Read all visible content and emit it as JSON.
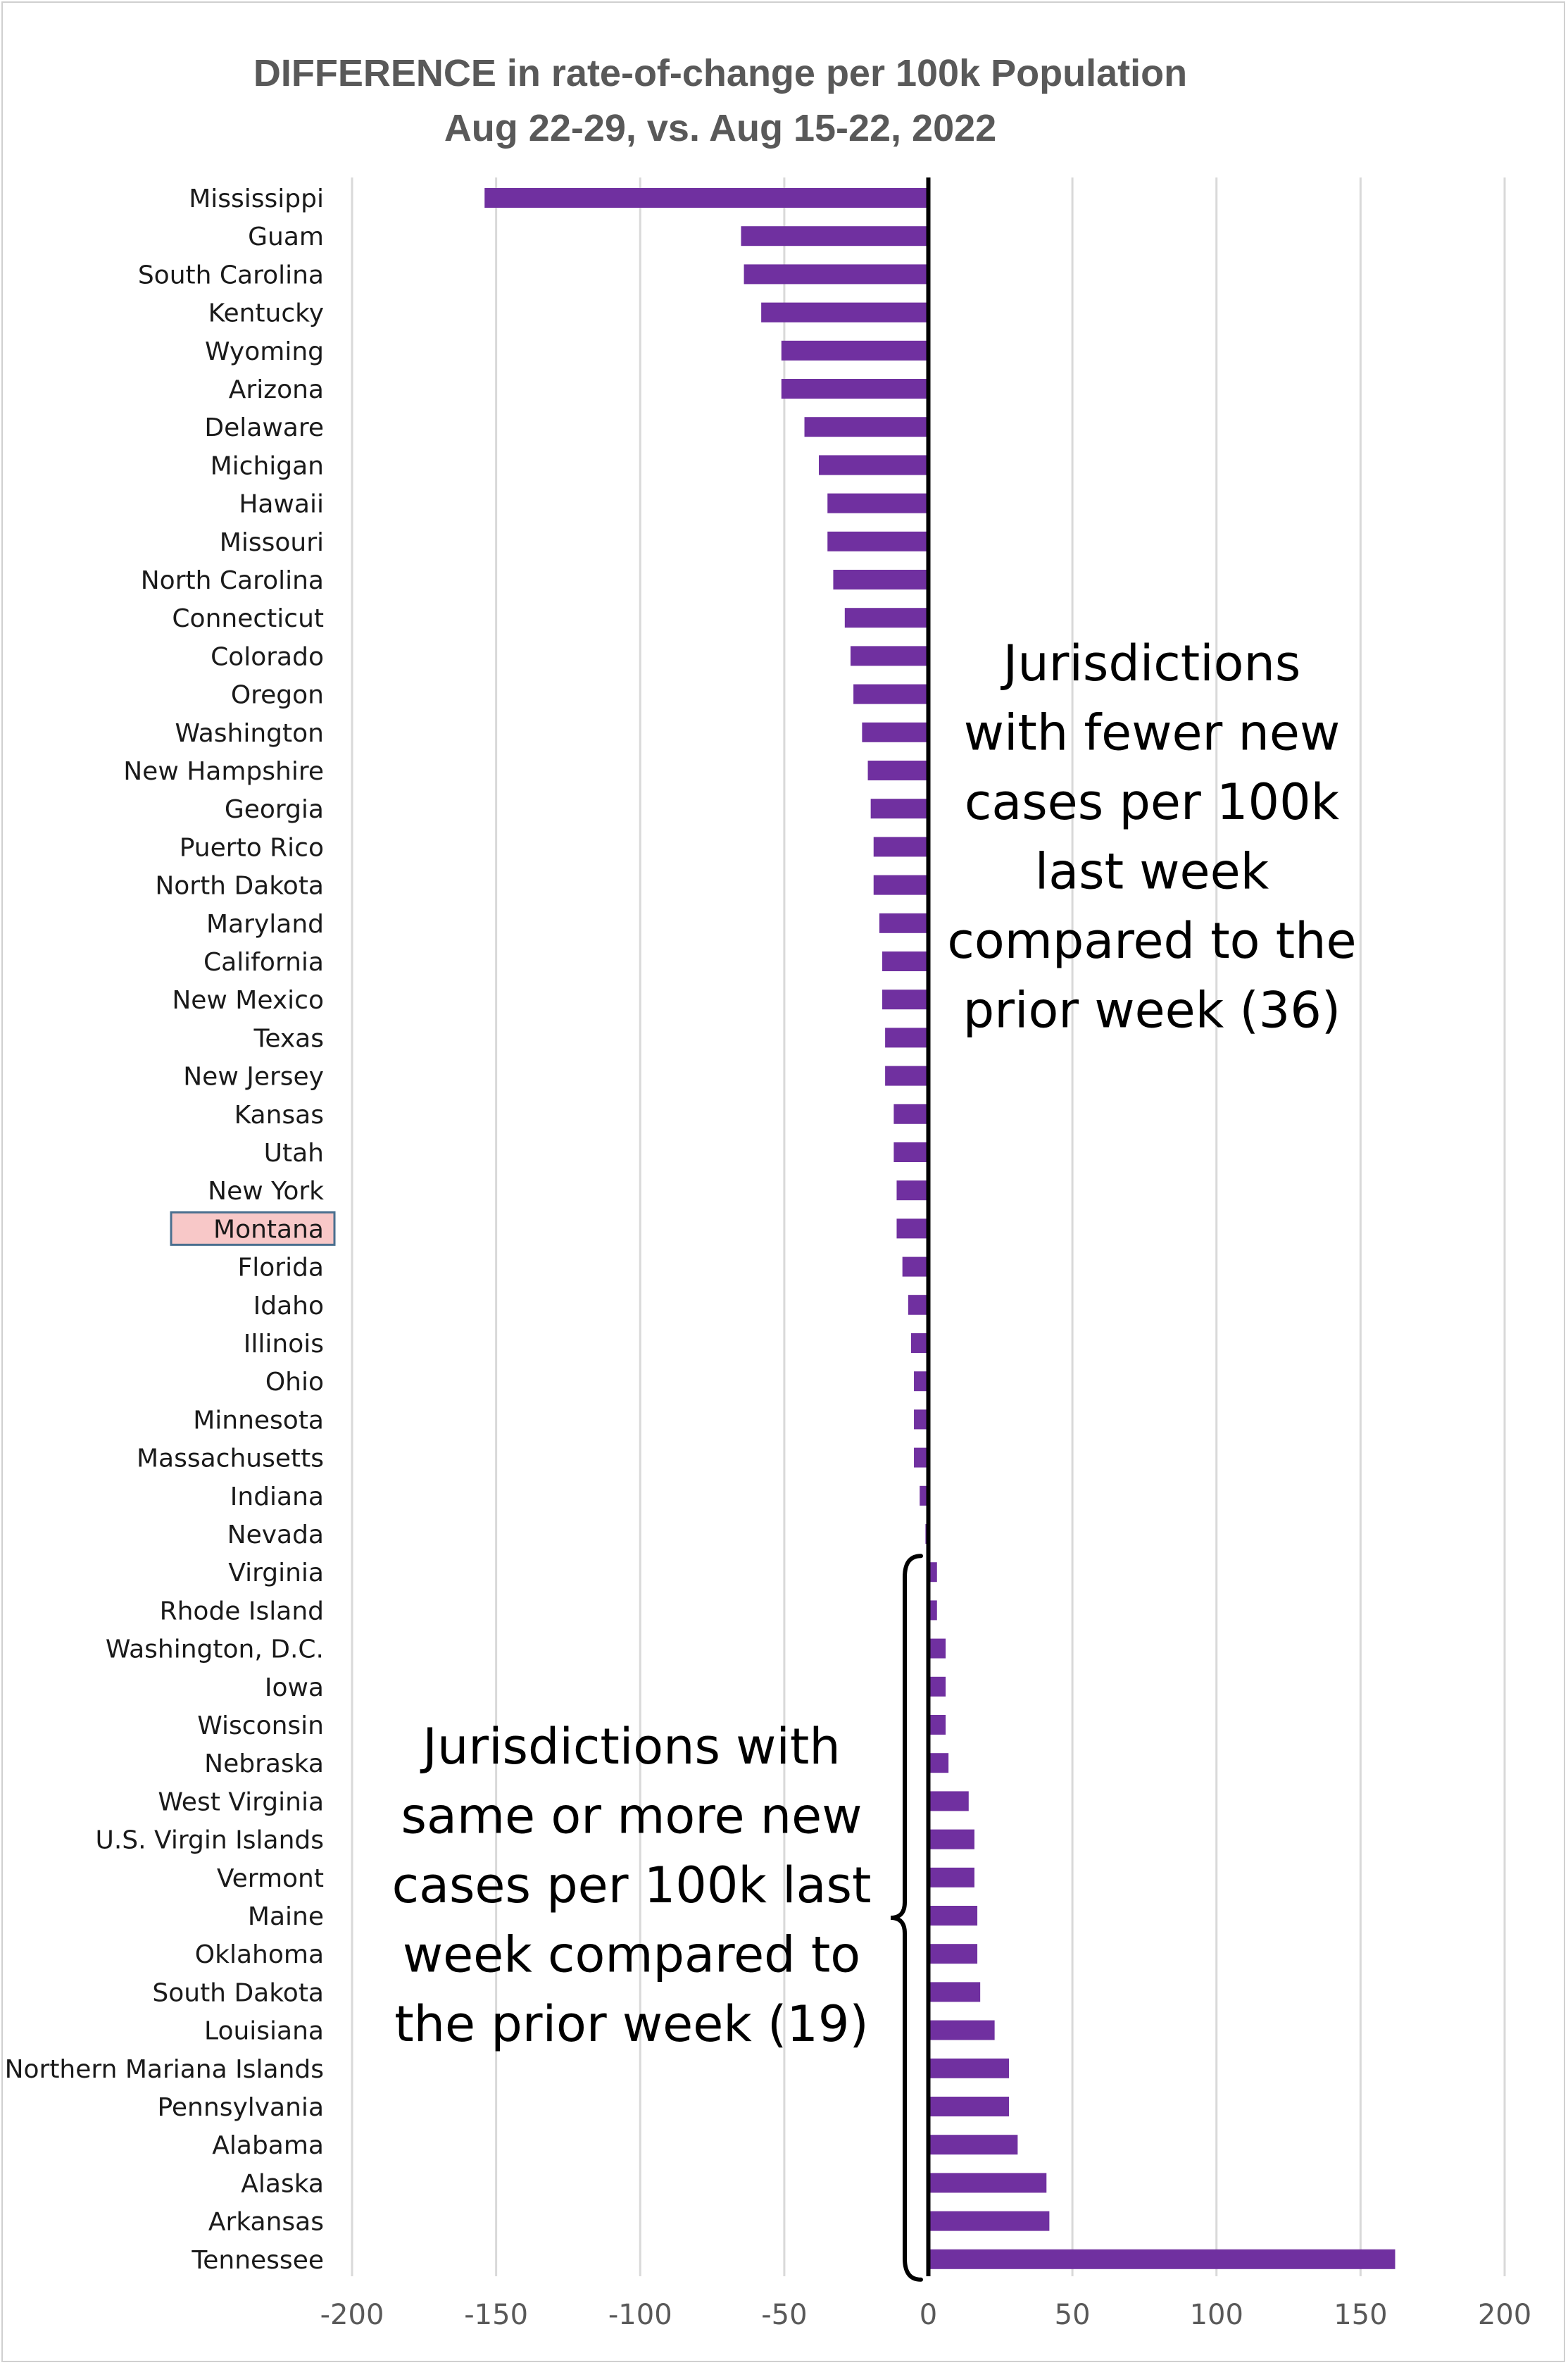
{
  "chart_data": {
    "type": "bar",
    "orientation": "horizontal",
    "title": "DIFFERENCE in rate-of-change per 100k Population",
    "subtitle": "Aug 22-29, vs. Aug 15-22, 2022",
    "xlim": [
      -200,
      200
    ],
    "xticks": [
      -200,
      -150,
      -100,
      -50,
      0,
      50,
      100,
      150,
      200
    ],
    "grid": "vertical",
    "bar_color": "#7030a0",
    "highlight_color": "#f8c8c8",
    "highlight_border": "#4a6f8f",
    "highlighted_category": "Montana",
    "categories": [
      "Mississippi",
      "Guam",
      "South Carolina",
      "Kentucky",
      "Wyoming",
      "Arizona",
      "Delaware",
      "Michigan",
      "Hawaii",
      "Missouri",
      "North Carolina",
      "Connecticut",
      "Colorado",
      "Oregon",
      "Washington",
      "New Hampshire",
      "Georgia",
      "Puerto Rico",
      "North Dakota",
      "Maryland",
      "California",
      "New Mexico",
      "Texas",
      "New Jersey",
      "Kansas",
      "Utah",
      "New York",
      "Montana",
      "Florida",
      "Idaho",
      "Illinois",
      "Ohio",
      "Minnesota",
      "Massachusetts",
      "Indiana",
      "Nevada",
      "Virginia",
      "Rhode Island",
      "Washington, D.C.",
      "Iowa",
      "Wisconsin",
      "Nebraska",
      "West Virginia",
      "U.S. Virgin Islands",
      "Vermont",
      "Maine",
      "Oklahoma",
      "South Dakota",
      "Louisiana",
      "Northern Mariana Islands",
      "Pennsylvania",
      "Alabama",
      "Alaska",
      "Arkansas",
      "Tennessee"
    ],
    "values": [
      -154,
      -65,
      -64,
      -58,
      -51,
      -51,
      -43,
      -38,
      -35,
      -35,
      -33,
      -29,
      -27,
      -26,
      -23,
      -21,
      -20,
      -19,
      -19,
      -17,
      -16,
      -16,
      -15,
      -15,
      -12,
      -12,
      -11,
      -11,
      -9,
      -7,
      -6,
      -5,
      -5,
      -5,
      -3,
      -1,
      3,
      3,
      6,
      6,
      6,
      7,
      14,
      16,
      16,
      17,
      17,
      18,
      23,
      28,
      28,
      31,
      41,
      42,
      162
    ],
    "annotations": [
      {
        "lines": [
          "Jurisdictions",
          "with fewer new",
          "cases per 100k",
          "last week",
          "compared to the",
          "prior week (36)"
        ]
      },
      {
        "lines": [
          "Jurisdictions with",
          "same or more new",
          "cases per 100k last",
          "week compared to",
          "the prior week (19)"
        ]
      }
    ]
  }
}
